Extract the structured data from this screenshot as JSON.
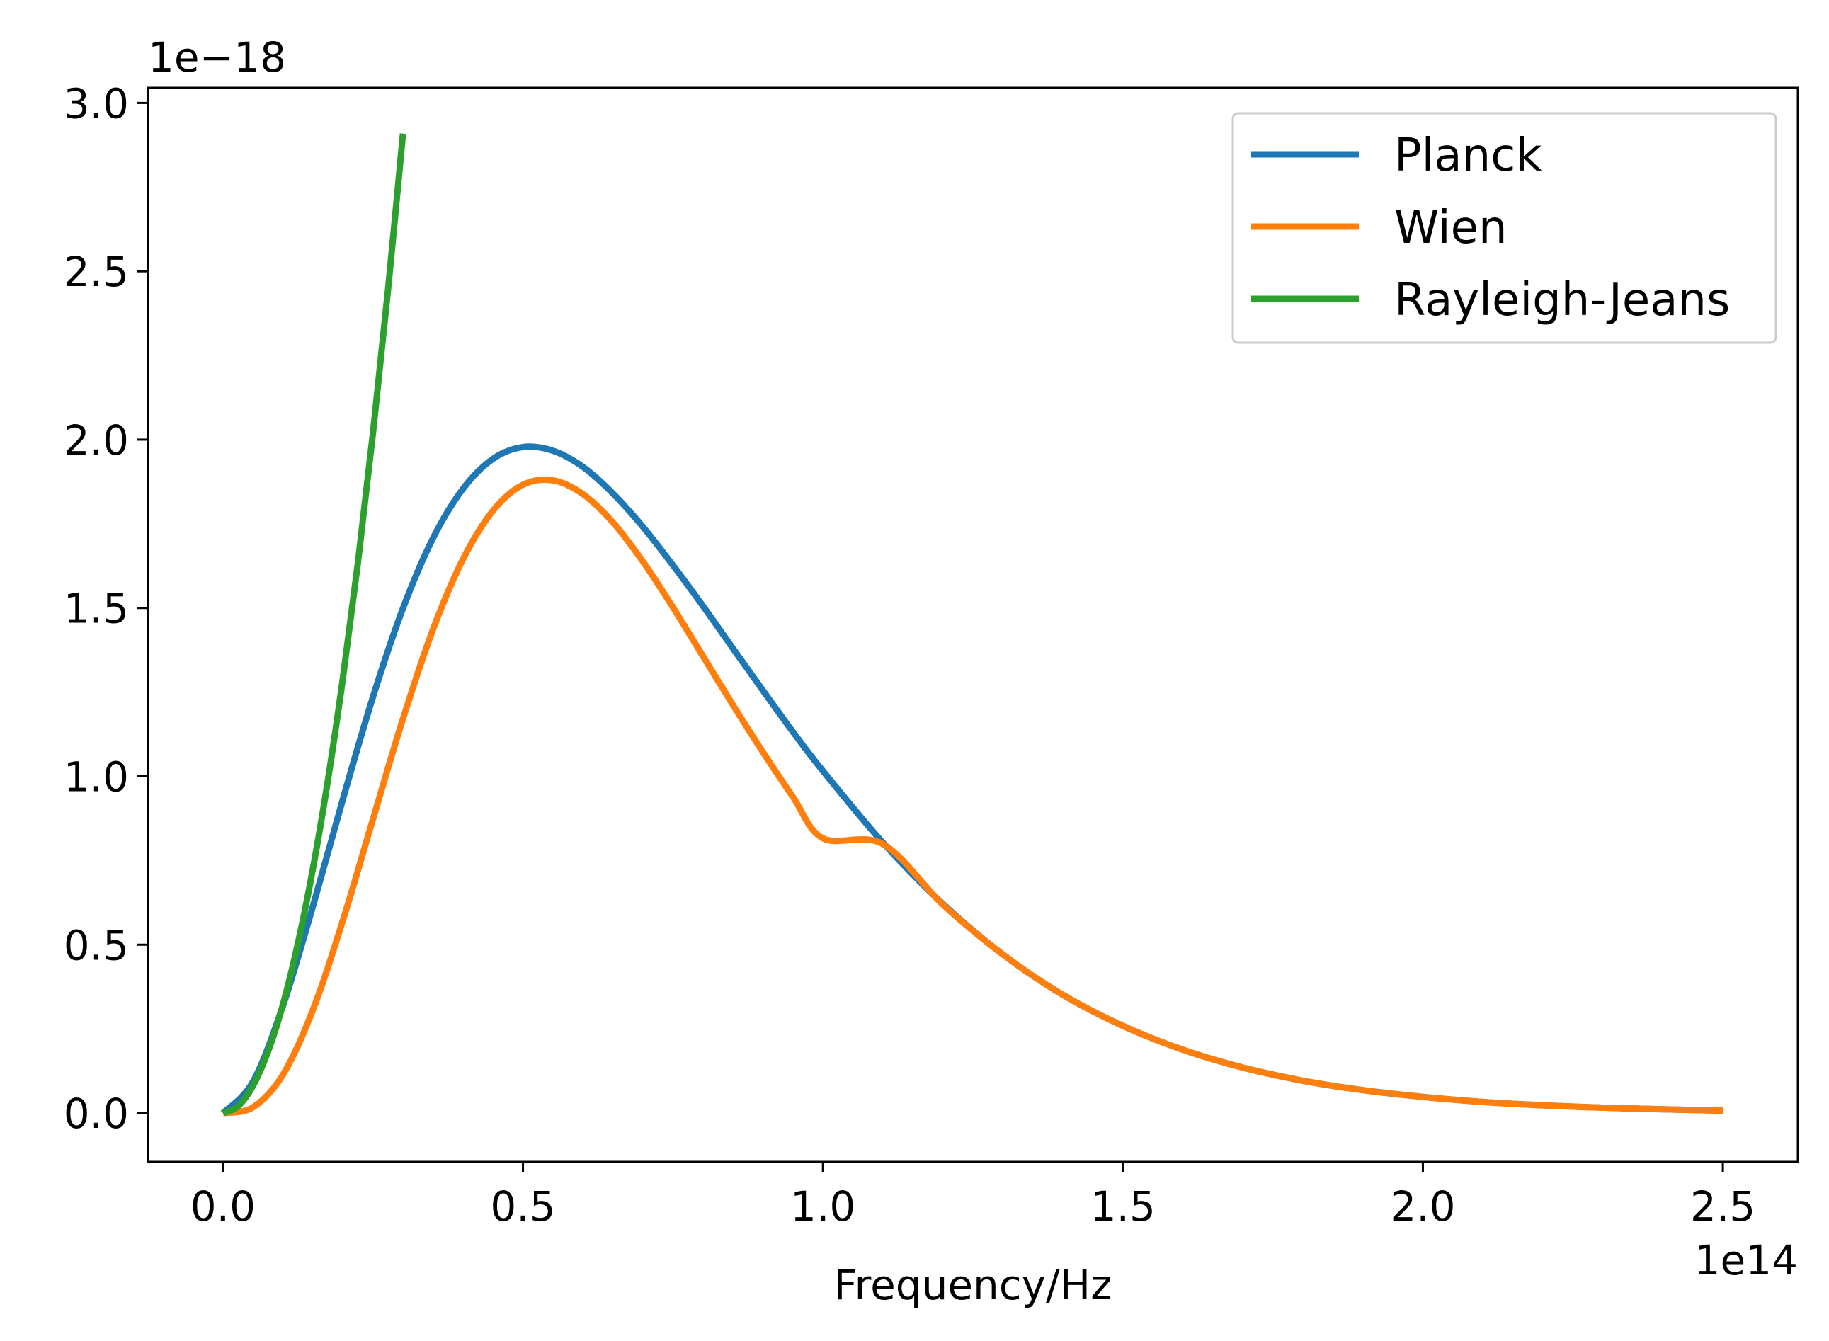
{
  "chart_data": {
    "type": "line",
    "title": "",
    "xlabel": "Frequency/Hz",
    "ylabel": "",
    "x_offset_label": "1e14",
    "y_offset_label": "1e−18",
    "xlim": [
      -0.125,
      2.625
    ],
    "ylim": [
      -0.145,
      3.045
    ],
    "xticks": [
      0.0,
      0.5,
      1.0,
      1.5,
      2.0,
      2.5
    ],
    "xtick_labels": [
      "0.0",
      "0.5",
      "1.0",
      "1.5",
      "2.0",
      "2.5"
    ],
    "yticks": [
      0.0,
      0.5,
      1.0,
      1.5,
      2.0,
      2.5,
      3.0
    ],
    "ytick_labels": [
      "0.0",
      "0.5",
      "1.0",
      "1.5",
      "2.0",
      "2.5",
      "3.0"
    ],
    "grid": false,
    "legend_position": "top-right",
    "series": [
      {
        "name": "Planck",
        "color": "#1f77b4",
        "x": [
          0,
          0.05,
          0.1,
          0.15,
          0.2,
          0.25,
          0.3,
          0.35,
          0.4,
          0.45,
          0.5,
          0.55,
          0.6,
          0.65,
          0.7,
          0.75,
          0.8,
          0.85,
          0.9,
          0.95,
          1.0,
          1.1,
          1.2,
          1.3,
          1.4,
          1.5,
          1.6,
          1.7,
          1.8,
          1.9,
          2.0,
          2.1,
          2.2,
          2.3,
          2.4,
          2.5
        ],
        "y": [
          0,
          0.093,
          0.319,
          0.615,
          0.933,
          1.236,
          1.499,
          1.707,
          1.854,
          1.943,
          1.978,
          1.967,
          1.919,
          1.84,
          1.741,
          1.627,
          1.506,
          1.38,
          1.255,
          1.132,
          1.016,
          0.803,
          0.621,
          0.471,
          0.351,
          0.259,
          0.188,
          0.135,
          0.096,
          0.068,
          0.048,
          0.033,
          0.023,
          0.016,
          0.011,
          0.007
        ]
      },
      {
        "name": "Wien",
        "color": "#ff7f0e",
        "x": [
          0,
          0.05,
          0.1,
          0.15,
          0.2,
          0.25,
          0.3,
          0.35,
          0.4,
          0.45,
          0.5,
          0.55,
          0.6,
          0.65,
          0.7,
          0.75,
          0.8,
          0.85,
          0.9,
          0.95,
          1.0,
          1.1,
          1.2,
          1.3,
          1.4,
          1.5,
          1.6,
          1.7,
          1.8,
          1.9,
          2.0,
          2.1,
          2.2,
          2.3,
          2.4,
          2.5
        ],
        "y": [
          0,
          0.017,
          0.114,
          0.307,
          0.573,
          0.873,
          1.171,
          1.436,
          1.645,
          1.789,
          1.866,
          1.879,
          1.838,
          1.754,
          1.638,
          1.502,
          1.357,
          1.212,
          1.072,
          0.939,
          0.816,
          0.799,
          0.619,
          0.471,
          0.351,
          0.259,
          0.188,
          0.135,
          0.096,
          0.068,
          0.048,
          0.033,
          0.023,
          0.016,
          0.011,
          0.007
        ]
      },
      {
        "name": "Rayleigh-Jeans",
        "color": "#2ca02c",
        "x": [
          0,
          0.025,
          0.05,
          0.075,
          0.1,
          0.125,
          0.15,
          0.175,
          0.2,
          0.225,
          0.25,
          0.275,
          0.3
        ],
        "y": [
          0,
          0.02,
          0.081,
          0.182,
          0.323,
          0.505,
          0.727,
          0.99,
          1.293,
          1.636,
          2.02,
          2.444,
          2.909
        ]
      }
    ]
  }
}
